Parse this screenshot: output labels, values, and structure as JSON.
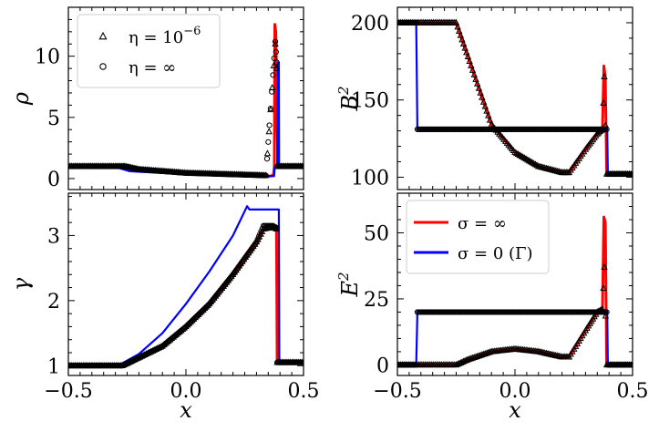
{
  "chart_data": [
    {
      "id": "rho",
      "type": "line",
      "ylabel": "ρ",
      "ylabel_sup": "",
      "xlabel": "",
      "xlim": [
        -0.5,
        0.5
      ],
      "ylim": [
        -0.9,
        14.0
      ],
      "yticks": [
        0,
        5,
        10
      ],
      "ytick_labels": [
        "0",
        "5",
        "10"
      ],
      "xticks": [
        -0.5,
        0.0,
        0.5
      ],
      "xtick_labels": [],
      "legend": {
        "placement": "top-left",
        "entries": [
          {
            "label": "η = 10",
            "sup": "−6",
            "marker": "triangle"
          },
          {
            "label": "η = ∞",
            "sup": "",
            "marker": "circle"
          }
        ]
      },
      "series": [
        {
          "name": "σ = ∞",
          "color": "#ff0000",
          "points": [
            [
              -0.5,
              1.0
            ],
            [
              -0.27,
              1.0
            ],
            [
              -0.2,
              0.7
            ],
            [
              0.0,
              0.45
            ],
            [
              0.36,
              0.2
            ],
            [
              0.372,
              0.3
            ],
            [
              0.376,
              1.0
            ],
            [
              0.378,
              12.6
            ],
            [
              0.382,
              12.0
            ],
            [
              0.385,
              9.0
            ],
            [
              0.388,
              4.0
            ],
            [
              0.392,
              1.0
            ],
            [
              0.5,
              1.0
            ]
          ]
        },
        {
          "name": "σ = 0 (Γ)",
          "color": "#0000ff",
          "points": [
            [
              -0.5,
              1.0
            ],
            [
              -0.31,
              1.0
            ],
            [
              -0.24,
              0.6
            ],
            [
              0.0,
              0.35
            ],
            [
              0.375,
              0.2
            ],
            [
              0.378,
              1.0
            ],
            [
              0.388,
              1.0
            ],
            [
              0.392,
              9.5
            ],
            [
              0.395,
              9.5
            ],
            [
              0.396,
              1.0
            ],
            [
              0.5,
              1.0
            ]
          ]
        },
        {
          "name": "η = ∞",
          "marker": "circle",
          "points": [
            [
              -0.5,
              1.0
            ],
            [
              -0.26,
              1.0
            ],
            [
              -0.2,
              0.75
            ],
            [
              0.0,
              0.45
            ],
            [
              0.34,
              0.25
            ],
            [
              0.38,
              11.2
            ],
            [
              0.386,
              9.5
            ],
            [
              0.39,
              1.0
            ],
            [
              0.5,
              1.0
            ]
          ]
        },
        {
          "name": "η = 10^-6",
          "marker": "triangle",
          "points": [
            [
              -0.5,
              1.0
            ],
            [
              -0.26,
              1.0
            ],
            [
              -0.2,
              0.75
            ],
            [
              0.0,
              0.45
            ],
            [
              0.34,
              0.25
            ],
            [
              0.38,
              11.0
            ],
            [
              0.386,
              9.0
            ],
            [
              0.39,
              1.0
            ],
            [
              0.5,
              1.0
            ]
          ]
        }
      ]
    },
    {
      "id": "B2",
      "type": "line",
      "ylabel": "B",
      "ylabel_sup": "2",
      "xlabel": "",
      "xlim": [
        -0.5,
        0.5
      ],
      "ylim": [
        92,
        210
      ],
      "yticks": [
        100,
        150,
        200
      ],
      "ytick_labels": [
        "100",
        "150",
        "200"
      ],
      "xticks": [
        -0.5,
        0.0,
        0.5
      ],
      "xtick_labels": [],
      "series": [
        {
          "name": "σ = ∞",
          "color": "#ff0000",
          "points": [
            [
              -0.5,
              200
            ],
            [
              -0.25,
              200
            ],
            [
              -0.2,
              178
            ],
            [
              -0.1,
              134
            ],
            [
              0.0,
              116
            ],
            [
              0.1,
              107
            ],
            [
              0.2,
              103
            ],
            [
              0.23,
              103
            ],
            [
              0.3,
              118
            ],
            [
              0.35,
              128
            ],
            [
              0.372,
              131
            ],
            [
              0.378,
              172
            ],
            [
              0.384,
              165
            ],
            [
              0.39,
              102
            ],
            [
              0.5,
              102
            ]
          ]
        },
        {
          "name": "σ = 0 (Γ)",
          "color": "#0000ff",
          "points": [
            [
              -0.5,
              200
            ],
            [
              -0.42,
              200
            ],
            [
              -0.415,
              131
            ],
            [
              0.392,
              131
            ],
            [
              0.395,
              102
            ],
            [
              0.5,
              102
            ]
          ]
        },
        {
          "name": "η = ∞",
          "marker": "circle",
          "points": [
            [
              -0.5,
              200
            ],
            [
              -0.42,
              200
            ],
            [
              -0.415,
              131
            ],
            [
              0.39,
              131
            ],
            [
              0.395,
              102
            ],
            [
              0.5,
              102
            ]
          ]
        },
        {
          "name": "η = 10^-6",
          "marker": "triangle",
          "points": [
            [
              -0.5,
              200
            ],
            [
              -0.25,
              200
            ],
            [
              -0.2,
              178
            ],
            [
              -0.1,
              134
            ],
            [
              0.0,
              116
            ],
            [
              0.1,
              107
            ],
            [
              0.2,
              103
            ],
            [
              0.23,
              103
            ],
            [
              0.3,
              118
            ],
            [
              0.35,
              128
            ],
            [
              0.372,
              131
            ],
            [
              0.38,
              165
            ],
            [
              0.39,
              102
            ],
            [
              0.5,
              102
            ]
          ]
        }
      ]
    },
    {
      "id": "gamma",
      "type": "line",
      "ylabel": "γ",
      "ylabel_sup": "",
      "xlabel": "x",
      "xlim": [
        -0.5,
        0.5
      ],
      "ylim": [
        0.85,
        3.65
      ],
      "yticks": [
        1,
        2,
        3
      ],
      "ytick_labels": [
        "1",
        "2",
        "3"
      ],
      "xticks": [
        -0.5,
        0.0,
        0.5
      ],
      "xtick_labels": [
        "−0.5",
        "0.0",
        "0.5"
      ],
      "series": [
        {
          "name": "σ = ∞",
          "color": "#ff0000",
          "points": [
            [
              -0.5,
              1.0
            ],
            [
              -0.27,
              1.0
            ],
            [
              -0.1,
              1.3
            ],
            [
              0.0,
              1.6
            ],
            [
              0.1,
              1.95
            ],
            [
              0.2,
              2.4
            ],
            [
              0.3,
              2.9
            ],
            [
              0.33,
              3.1
            ],
            [
              0.37,
              3.15
            ],
            [
              0.385,
              3.12
            ],
            [
              0.388,
              1.05
            ],
            [
              0.5,
              1.05
            ]
          ]
        },
        {
          "name": "σ = 0 (Γ)",
          "color": "#0000ff",
          "points": [
            [
              -0.5,
              1.0
            ],
            [
              -0.29,
              1.0
            ],
            [
              -0.2,
              1.18
            ],
            [
              -0.1,
              1.5
            ],
            [
              0.0,
              1.95
            ],
            [
              0.1,
              2.45
            ],
            [
              0.2,
              3.0
            ],
            [
              0.26,
              3.45
            ],
            [
              0.27,
              3.4
            ],
            [
              0.395,
              3.4
            ],
            [
              0.397,
              1.05
            ],
            [
              0.5,
              1.05
            ]
          ]
        },
        {
          "name": "η = ∞",
          "marker": "circle",
          "points": [
            [
              -0.5,
              1.0
            ],
            [
              -0.27,
              1.0
            ],
            [
              -0.1,
              1.3
            ],
            [
              0.0,
              1.6
            ],
            [
              0.1,
              1.95
            ],
            [
              0.2,
              2.4
            ],
            [
              0.3,
              2.9
            ],
            [
              0.33,
              3.15
            ],
            [
              0.37,
              3.15
            ],
            [
              0.385,
              3.12
            ],
            [
              0.388,
              1.05
            ],
            [
              0.5,
              1.05
            ]
          ]
        },
        {
          "name": "η = 10^-6",
          "marker": "triangle",
          "points": [
            [
              -0.5,
              1.0
            ],
            [
              -0.27,
              1.0
            ],
            [
              -0.1,
              1.3
            ],
            [
              0.0,
              1.6
            ],
            [
              0.1,
              1.95
            ],
            [
              0.2,
              2.4
            ],
            [
              0.3,
              2.9
            ],
            [
              0.33,
              3.1
            ],
            [
              0.37,
              3.13
            ],
            [
              0.385,
              3.1
            ],
            [
              0.388,
              1.05
            ],
            [
              0.5,
              1.05
            ]
          ]
        }
      ]
    },
    {
      "id": "E2",
      "type": "line",
      "ylabel": "E",
      "ylabel_sup": "2",
      "xlabel": "x",
      "xlim": [
        -0.5,
        0.5
      ],
      "ylim": [
        -4,
        65
      ],
      "yticks": [
        0,
        25,
        50
      ],
      "ytick_labels": [
        "0",
        "25",
        "50"
      ],
      "xticks": [
        -0.5,
        0.0,
        0.5
      ],
      "xtick_labels": [
        "−0.5",
        "0.0",
        "0.5"
      ],
      "legend": {
        "placement": "top-left",
        "entries": [
          {
            "label": "σ = ∞",
            "sup": "",
            "line_color": "#ff0000"
          },
          {
            "label": "σ = 0 (Γ)",
            "sup": "",
            "line_color": "#0000ff"
          }
        ]
      },
      "series": [
        {
          "name": "σ = ∞",
          "color": "#ff0000",
          "points": [
            [
              -0.5,
              0
            ],
            [
              -0.25,
              0
            ],
            [
              -0.2,
              2
            ],
            [
              -0.1,
              5
            ],
            [
              0.0,
              6
            ],
            [
              0.1,
              5
            ],
            [
              0.2,
              3
            ],
            [
              0.23,
              3
            ],
            [
              0.3,
              13
            ],
            [
              0.35,
              20
            ],
            [
              0.372,
              21
            ],
            [
              0.378,
              56
            ],
            [
              0.384,
              54
            ],
            [
              0.39,
              0
            ],
            [
              0.5,
              0
            ]
          ]
        },
        {
          "name": "σ = 0 (Γ)",
          "color": "#0000ff",
          "points": [
            [
              -0.5,
              0
            ],
            [
              -0.42,
              0
            ],
            [
              -0.415,
              20
            ],
            [
              0.392,
              20
            ],
            [
              0.395,
              0
            ],
            [
              0.5,
              0
            ]
          ]
        },
        {
          "name": "η = ∞",
          "marker": "circle",
          "points": [
            [
              -0.5,
              0
            ],
            [
              -0.42,
              0
            ],
            [
              -0.415,
              20
            ],
            [
              0.39,
              20
            ],
            [
              0.395,
              0
            ],
            [
              0.5,
              0
            ]
          ]
        },
        {
          "name": "η = 10^-6",
          "marker": "triangle",
          "points": [
            [
              -0.5,
              0
            ],
            [
              -0.25,
              0
            ],
            [
              -0.2,
              2
            ],
            [
              -0.1,
              5
            ],
            [
              0.0,
              6
            ],
            [
              0.1,
              5
            ],
            [
              0.2,
              3
            ],
            [
              0.23,
              3
            ],
            [
              0.3,
              13
            ],
            [
              0.35,
              20
            ],
            [
              0.372,
              21
            ],
            [
              0.38,
              37
            ],
            [
              0.39,
              0
            ],
            [
              0.5,
              0
            ]
          ]
        }
      ]
    }
  ]
}
